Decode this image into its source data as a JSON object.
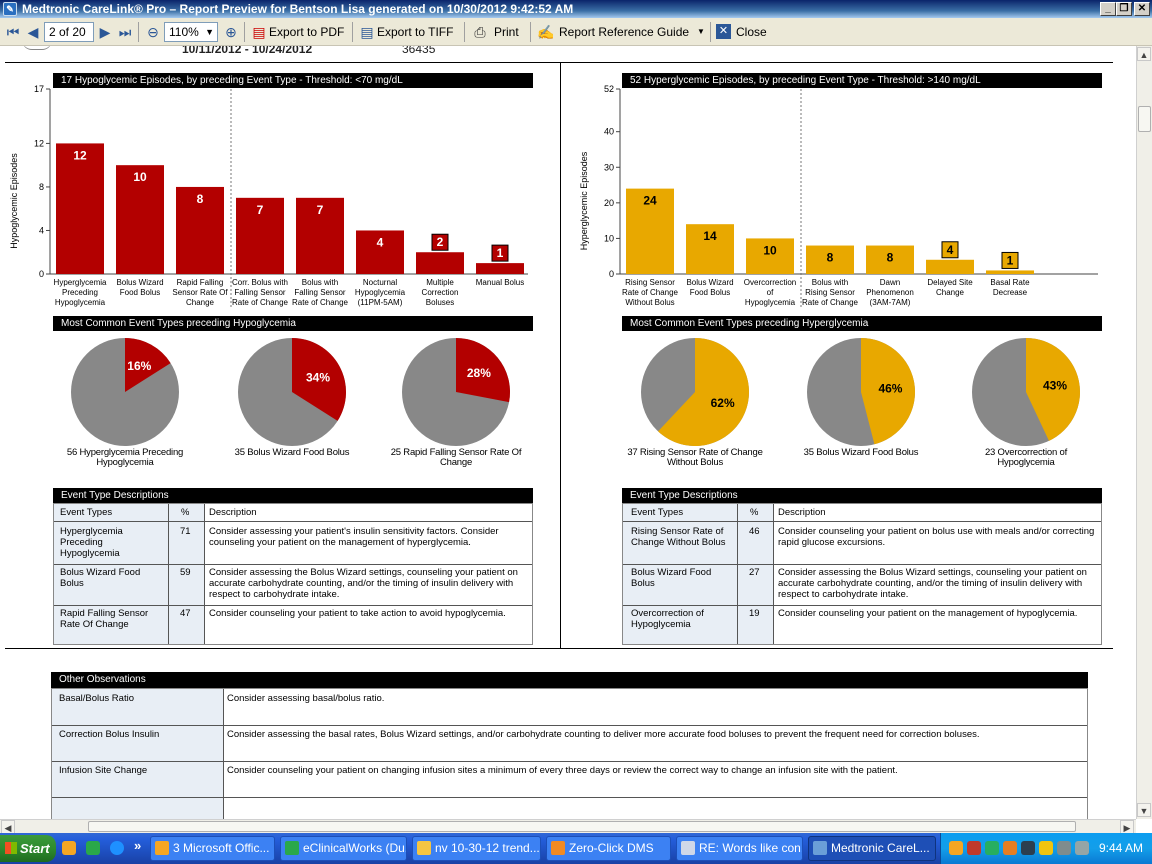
{
  "window": {
    "title": "Medtronic CareLink® Pro – Report Preview for Bentson Lisa generated on 10/30/2012 9:42:52 AM",
    "app_icon": "carelink-icon"
  },
  "toolbar": {
    "page_value": "2 of 20",
    "zoom_value": "110%",
    "export_pdf": "Export to PDF",
    "export_tiff": "Export to TIFF",
    "print": "Print",
    "reference_guide": "Report Reference Guide",
    "close": "Close"
  },
  "report_header": {
    "date_range": "10/11/2012 - 10/24/2012",
    "number": "36435"
  },
  "hypo": {
    "title": "17 Hypoglycemic Episodes, by preceding Event Type   -   Threshold: <70 mg/dL",
    "ylabel": "Hypoglycemic Episodes",
    "ticks": [
      "17",
      "12",
      "8",
      "4",
      "0"
    ],
    "pies_title": "Most Common Event Types preceding Hypoglycemia",
    "pies": [
      {
        "pct_label": "16%",
        "pct": 16,
        "caption1": "56 Hyperglycemia Preceding",
        "caption2": "Hypoglycemia"
      },
      {
        "pct_label": "34%",
        "pct": 34,
        "caption1": "35 Bolus Wizard Food Bolus",
        "caption2": ""
      },
      {
        "pct_label": "28%",
        "pct": 28,
        "caption1": "25 Rapid Falling Sensor Rate Of",
        "caption2": "Change"
      }
    ],
    "desc_title": "Event Type Descriptions",
    "desc_headers": [
      "Event Types",
      "%",
      "Description"
    ],
    "desc_rows": [
      {
        "type": "Hyperglycemia Preceding Hypoglycemia",
        "pct": "71",
        "desc": "Consider assessing your patient's insulin sensitivity factors. Consider counseling your patient on the management of hyperglycemia."
      },
      {
        "type": "Bolus Wizard Food Bolus",
        "pct": "59",
        "desc": "Consider assessing the Bolus Wizard settings, counseling your patient on accurate carbohydrate counting, and/or the timing of insulin delivery with respect to carbohydrate intake."
      },
      {
        "type": "Rapid Falling Sensor Rate Of Change",
        "pct": "47",
        "desc": "Consider counseling your patient to take action to avoid hypoglycemia."
      }
    ]
  },
  "hyper": {
    "title": "52 Hyperglycemic Episodes, by preceding Event Type   -   Threshold: >140 mg/dL",
    "ylabel": "Hyperglycemic Episodes",
    "ticks": [
      "52",
      "40",
      "30",
      "20",
      "10",
      "0"
    ],
    "pies_title": "Most Common Event Types preceding Hyperglycemia",
    "pies": [
      {
        "pct_label": "62%",
        "pct": 62,
        "caption1": "37 Rising Sensor Rate of Change",
        "caption2": "Without Bolus"
      },
      {
        "pct_label": "46%",
        "pct": 46,
        "caption1": "35 Bolus Wizard Food Bolus",
        "caption2": ""
      },
      {
        "pct_label": "43%",
        "pct": 43,
        "caption1": "23 Overcorrection of",
        "caption2": "Hypoglycemia"
      }
    ],
    "desc_title": "Event Type Descriptions",
    "desc_headers": [
      "Event Types",
      "%",
      "Description"
    ],
    "desc_rows": [
      {
        "type": "Rising Sensor Rate of Change Without Bolus",
        "pct": "46",
        "desc": "Consider counseling your patient on bolus use with meals and/or correcting rapid glucose excursions."
      },
      {
        "type": "Bolus Wizard Food Bolus",
        "pct": "27",
        "desc": "Consider assessing the Bolus Wizard settings, counseling your patient on accurate carbohydrate counting, and/or the timing of insulin delivery with respect to carbohydrate intake."
      },
      {
        "type": "Overcorrection of Hypoglycemia",
        "pct": "19",
        "desc": "Consider counseling your patient on the management of hypoglycemia."
      }
    ]
  },
  "chart_data": [
    {
      "type": "bar",
      "title": "17 Hypoglycemic Episodes, by preceding Event Type - Threshold: <70 mg/dL",
      "ylabel": "Hypoglycemic Episodes",
      "ylim": [
        0,
        17
      ],
      "color": "#b30000",
      "categories": [
        "Hyperglycemia Preceding Hypoglycemia",
        "Bolus Wizard Food Bolus",
        "Rapid Falling Sensor Rate Of Change",
        "Corr. Bolus with Falling Sensor Rate of Change",
        "Bolus with Falling Sensor Rate of Change",
        "Nocturnal Hypoglycemia (11PM-5AM)",
        "Multiple Correction Boluses",
        "Manual Bolus"
      ],
      "labels": [
        [
          "Hyperglycemia",
          "Preceding",
          "Hypoglycemia"
        ],
        [
          "Bolus Wizard",
          "Food Bolus"
        ],
        [
          "Rapid Falling",
          "Sensor Rate Of",
          "Change"
        ],
        [
          "Corr. Bolus with",
          "Falling Sensor",
          "Rate of Change"
        ],
        [
          "Bolus with",
          "Falling Sensor",
          "Rate of Change"
        ],
        [
          "Nocturnal",
          "Hypoglycemia",
          "(11PM-5AM)"
        ],
        [
          "Multiple",
          "Correction",
          "Boluses"
        ],
        [
          "Manual Bolus"
        ]
      ],
      "values": [
        12,
        10,
        8,
        7,
        7,
        4,
        2,
        1
      ]
    },
    {
      "type": "bar",
      "title": "52 Hyperglycemic Episodes, by preceding Event Type - Threshold: >140 mg/dL",
      "ylabel": "Hyperglycemic Episodes",
      "ylim": [
        0,
        52
      ],
      "color": "#e8a800",
      "categories": [
        "Rising Sensor Rate of Change Without Bolus",
        "Bolus Wizard Food Bolus",
        "Overcorrection of Hypoglycemia",
        "Bolus with Rising Sensor Rate of Change",
        "Dawn Phenomenon (3AM-7AM)",
        "Delayed Site Change",
        "Basal Rate Decrease"
      ],
      "labels": [
        [
          "Rising Sensor",
          "Rate of Change",
          "Without Bolus"
        ],
        [
          "Bolus Wizard",
          "Food Bolus"
        ],
        [
          "Overcorrection",
          "of",
          "Hypoglycemia"
        ],
        [
          "Bolus with",
          "Rising Sensor",
          "Rate of Change"
        ],
        [
          "Dawn",
          "Phenomenon",
          "(3AM-7AM)"
        ],
        [
          "Delayed Site",
          "Change"
        ],
        [
          "Basal Rate",
          "Decrease"
        ]
      ],
      "values": [
        24,
        14,
        10,
        8,
        8,
        4,
        1
      ]
    }
  ],
  "other": {
    "title": "Other Observations",
    "rows": [
      {
        "label": "Basal/Bolus Ratio",
        "text": "Consider assessing basal/bolus ratio."
      },
      {
        "label": "Correction Bolus Insulin",
        "text": "Consider assessing the basal rates, Bolus Wizard settings, and/or carbohydrate counting to deliver more accurate food boluses to prevent the frequent need for correction boluses."
      },
      {
        "label": "Infusion Site Change",
        "text": "Consider counseling your patient on changing infusion sites a minimum of every three days or review the correct way to change an infusion site with the patient."
      },
      {
        "label": "",
        "text": ""
      }
    ]
  },
  "taskbar": {
    "start": "Start",
    "chevron": "»",
    "tasks": [
      {
        "label": "3 Microsoft Offic...",
        "icon": "office-icon",
        "color": "#f5a623"
      },
      {
        "label": "eClinicalWorks (Du...",
        "icon": "ecw-icon",
        "color": "#2aa84a"
      },
      {
        "label": "nv 10-30-12 trend...",
        "icon": "document-icon",
        "color": "#f5c542"
      },
      {
        "label": "Zero-Click DMS",
        "icon": "dms-icon",
        "color": "#f08a24"
      },
      {
        "label": "RE: Words like con...",
        "icon": "mail-icon",
        "color": "#d0d8e8"
      },
      {
        "label": "Medtronic CareL...",
        "icon": "carelink-icon",
        "color": "#6a9fd8"
      }
    ],
    "clock": "9:44 AM"
  }
}
